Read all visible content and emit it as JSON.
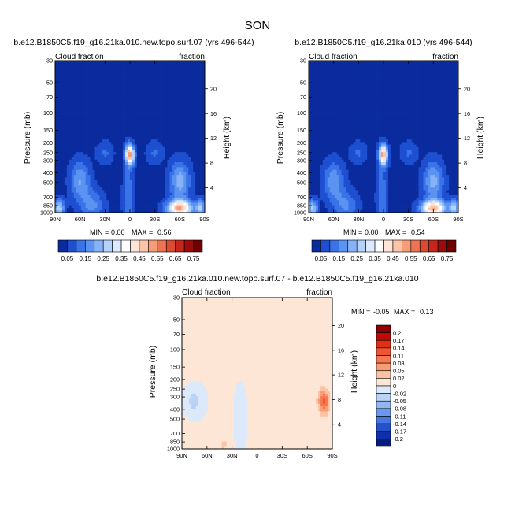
{
  "figure_title": "SON",
  "chart_data": [
    {
      "type": "heatmap",
      "title": "b.e12.B1850C5.f19_g16.21ka.010.new.topo.surf.07 (yrs 496-544)",
      "left_label": "Cloud fraction",
      "right_label": "fraction",
      "xlabel": "",
      "ylabel": "Pressure (mb)",
      "ylabel_right": "Height (km)",
      "x_ticks": [
        "90N",
        "60N",
        "30N",
        "0",
        "30S",
        "60S",
        "90S"
      ],
      "y_ticks": [
        "30",
        "50",
        "70",
        "100",
        "150",
        "200",
        "250",
        "300",
        "400",
        "500",
        "700",
        "850",
        "1000"
      ],
      "y_ticks_right": [
        "20",
        "16",
        "12",
        "8",
        "4"
      ],
      "stats": {
        "min_label": "MIN =",
        "min": "0.00",
        "max_label": "MAX =",
        "max": "0.56"
      },
      "ylim": [
        1000,
        30
      ],
      "xlim": [
        90,
        -90
      ]
    },
    {
      "type": "heatmap",
      "title": "b.e12.B1850C5.f19_g16.21ka.010 (yrs 496-544)",
      "left_label": "Cloud fraction",
      "right_label": "fraction",
      "xlabel": "",
      "ylabel": "Pressure (mb)",
      "ylabel_right": "Height (km)",
      "x_ticks": [
        "90N",
        "60N",
        "30N",
        "0",
        "30S",
        "60S",
        "90S"
      ],
      "y_ticks": [
        "30",
        "50",
        "70",
        "100",
        "150",
        "200",
        "250",
        "300",
        "400",
        "500",
        "700",
        "850",
        "1000"
      ],
      "y_ticks_right": [
        "20",
        "16",
        "12",
        "8",
        "4"
      ],
      "stats": {
        "min_label": "MIN =",
        "min": "0.00",
        "max_label": "MAX =",
        "max": "0.54"
      },
      "ylim": [
        1000,
        30
      ],
      "xlim": [
        90,
        -90
      ]
    },
    {
      "type": "heatmap",
      "title": "b.e12.B1850C5.f19_g16.21ka.010.new.topo.surf.07 - b.e12.B1850C5.f19_g16.21ka.010",
      "left_label": "Cloud fraction",
      "right_label": "fraction",
      "xlabel": "",
      "ylabel": "Pressure (mb)",
      "ylabel_right": "Height (km)",
      "x_ticks": [
        "90N",
        "60N",
        "30N",
        "0",
        "30S",
        "60S",
        "90S"
      ],
      "y_ticks": [
        "30",
        "50",
        "70",
        "100",
        "150",
        "200",
        "250",
        "300",
        "400",
        "500",
        "700",
        "850",
        "1000"
      ],
      "y_ticks_right": [
        "20",
        "16",
        "12",
        "8",
        "4"
      ],
      "stats": {
        "min_label": "MIN =",
        "min": "-0.05",
        "max_label": "MAX =",
        "max": "0.13"
      },
      "ylim": [
        1000,
        30
      ],
      "xlim": [
        90,
        -90
      ]
    }
  ],
  "colorbars": {
    "main": {
      "labels": [
        "0.05",
        "0.15",
        "0.25",
        "0.35",
        "0.45",
        "0.55",
        "0.65",
        "0.75"
      ],
      "colors": [
        "#0a2b9e",
        "#1d4fd0",
        "#3a72e8",
        "#5b93f2",
        "#86b3f7",
        "#b4d2fb",
        "#dbeafe",
        "#ffffff",
        "#fde4d6",
        "#fbc3a8",
        "#f59c78",
        "#ec7353",
        "#dd4a32",
        "#c4261b",
        "#9c0c0c",
        "#6e0000"
      ]
    },
    "diff": {
      "labels": [
        "0.2",
        "0.17",
        "0.14",
        "0.11",
        "0.08",
        "0.05",
        "0.02",
        "0",
        "-0.02",
        "-0.05",
        "-0.08",
        "-0.11",
        "-0.14",
        "-0.17",
        "-0.2"
      ],
      "colors": [
        "#8c0000",
        "#c00a0a",
        "#e03010",
        "#ef5530",
        "#f57850",
        "#f89c78",
        "#fbc2a4",
        "#fde6d6",
        "#dbe9fb",
        "#b9d3f7",
        "#92b6f2",
        "#6b98ec",
        "#4676e0",
        "#2452cc",
        "#0f30a8",
        "#071c80"
      ]
    }
  }
}
